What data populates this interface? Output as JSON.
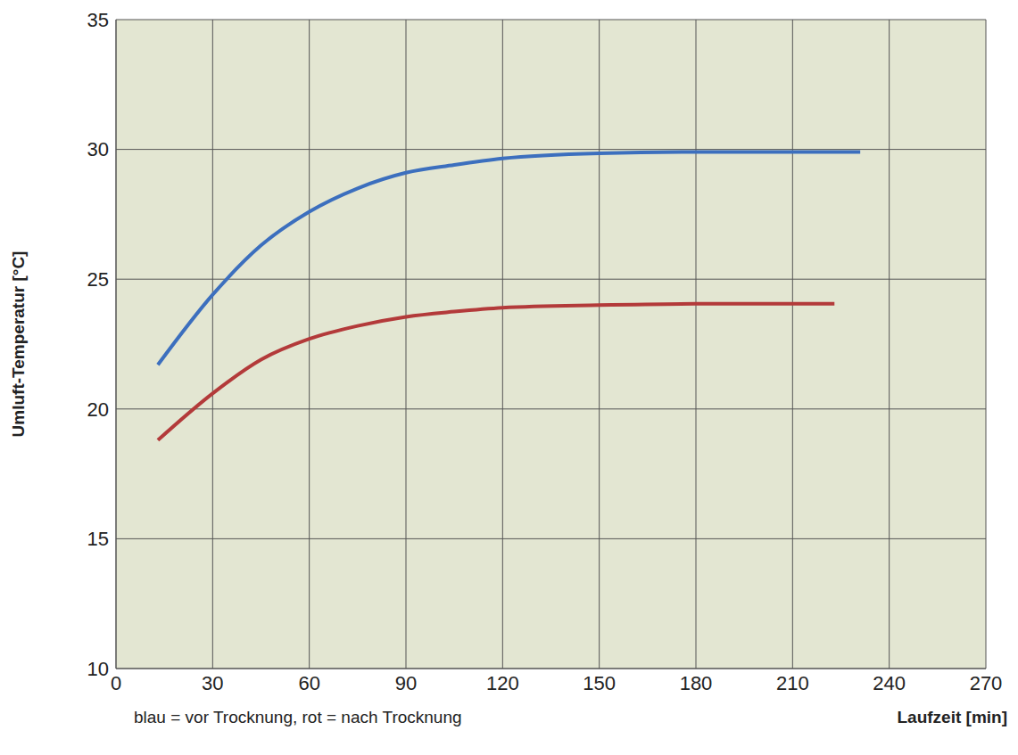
{
  "chart_data": {
    "type": "line",
    "x_label": "Laufzeit [min]",
    "y_label": "Umluft-Temperatur [°C]",
    "annotations": [
      "blau = vor Trocknung, rot = nach Trocknung"
    ],
    "xlim": [
      0,
      270
    ],
    "xticks": [
      0,
      30,
      60,
      90,
      120,
      150,
      180,
      210,
      240,
      270
    ],
    "ylim": [
      10,
      35
    ],
    "yticks": [
      10,
      15,
      20,
      25,
      30,
      35
    ],
    "grid": true,
    "series": [
      {
        "color": "#3c6fbe",
        "x": [
          13,
          30,
          45,
          60,
          75,
          90,
          105,
          120,
          150,
          180,
          210,
          231
        ],
        "values": [
          21.7,
          24.4,
          26.3,
          27.6,
          28.5,
          29.1,
          29.4,
          29.65,
          29.85,
          29.9,
          29.9,
          29.9
        ]
      },
      {
        "color": "#b33a3a",
        "x": [
          13,
          30,
          45,
          60,
          75,
          90,
          105,
          120,
          150,
          180,
          210,
          223
        ],
        "values": [
          18.8,
          20.6,
          21.9,
          22.7,
          23.2,
          23.55,
          23.75,
          23.9,
          24.0,
          24.05,
          24.05,
          24.05
        ]
      }
    ]
  }
}
